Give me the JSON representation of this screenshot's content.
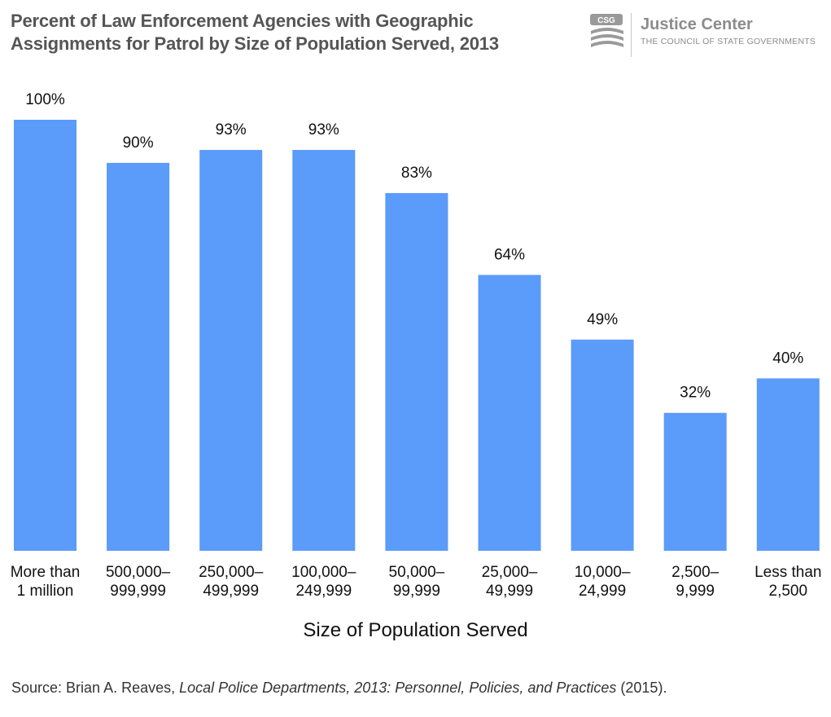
{
  "header": {
    "title": "Percent of Law Enforcement Agencies with Geographic\nAssignments for Patrol by Size of Population Served, 2013"
  },
  "logo": {
    "mark_text": "CSG",
    "name": "Justice Center",
    "subtitle": "THE COUNCIL OF STATE GOVERNMENTS"
  },
  "chart_data": {
    "type": "bar",
    "title": "Percent of Law Enforcement Agencies with Geographic Assignments for Patrol by Size of Population Served, 2013",
    "xlabel": "Size of Population Served",
    "ylabel": "",
    "ylim": [
      0,
      100
    ],
    "grid": false,
    "categories": [
      "More than\n1 million",
      "500,000–\n999,999",
      "250,000–\n499,999",
      "100,000–\n249,999",
      "50,000–\n99,999",
      "25,000–\n49,999",
      "10,000–\n24,999",
      "2,500–\n9,999",
      "Less than\n2,500"
    ],
    "values": [
      100,
      90,
      93,
      93,
      83,
      64,
      49,
      32,
      40
    ],
    "data_labels": [
      "100%",
      "90%",
      "93%",
      "93%",
      "83%",
      "64%",
      "49%",
      "32%",
      "40%"
    ],
    "bar_color": "#5b9bfa"
  },
  "source": {
    "prefix": "Source: Brian A. Reaves, ",
    "title_italic": "Local Police Departments, 2013: Personnel, Policies, and Practices",
    "suffix": " (2015)."
  }
}
